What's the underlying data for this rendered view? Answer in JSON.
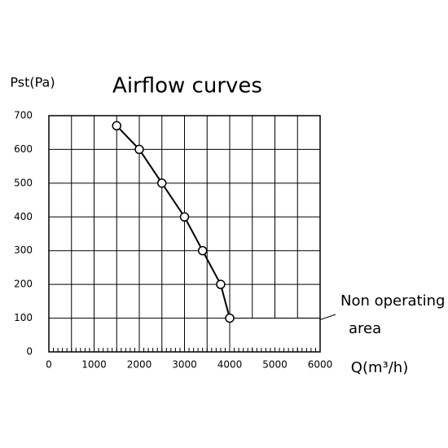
{
  "chart_data": {
    "type": "line",
    "title": "Airflow curves",
    "y_label": "Pst(Pa)",
    "x_label": "Q(m³/h)",
    "annotation": [
      "Non operating",
      "area"
    ],
    "x": [
      1500,
      2000,
      2500,
      3000,
      3400,
      3800,
      4000
    ],
    "series": [
      {
        "color": "#000000",
        "values": [
          670,
          600,
          500,
          400,
          300,
          200,
          100
        ]
      }
    ],
    "xlim": [
      0,
      6000
    ],
    "xticks": [
      0,
      1000,
      2000,
      3000,
      4000,
      5000,
      6000
    ],
    "ylim": [
      0,
      700
    ],
    "yticks": [
      0,
      100,
      200,
      300,
      400,
      500,
      600,
      700
    ],
    "grid": true
  }
}
